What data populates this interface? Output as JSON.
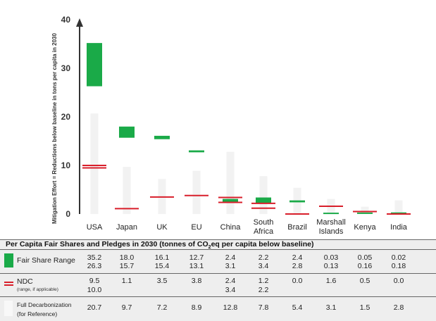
{
  "chart_data": {
    "type": "bar",
    "ylabel": "Mitigation Effort = Reductions below baseline in tons per capita in 2030",
    "ylim": [
      0,
      40
    ],
    "yticks": [
      "0",
      "10",
      "20",
      "30",
      "40"
    ],
    "categories": [
      "USA",
      "Japan",
      "UK",
      "EU",
      "China",
      "South Africa",
      "Brazil",
      "Marshall Islands",
      "Kenya",
      "India"
    ],
    "category_lines": [
      [
        "USA"
      ],
      [
        "Japan"
      ],
      [
        "UK"
      ],
      [
        "EU"
      ],
      [
        "China"
      ],
      [
        "South",
        "Africa"
      ],
      [
        "Brazil"
      ],
      [
        "Marshall",
        "Islands"
      ],
      [
        "Kenya"
      ],
      [
        "India"
      ]
    ],
    "fair_share_range": [
      [
        26.3,
        35.2
      ],
      [
        15.7,
        18.0
      ],
      [
        15.4,
        16.1
      ],
      [
        13.1,
        12.7
      ],
      [
        3.1,
        2.4
      ],
      [
        3.4,
        2.2
      ],
      [
        2.8,
        2.4
      ],
      [
        0.13,
        0.03
      ],
      [
        0.16,
        0.05
      ],
      [
        0.18,
        0.02
      ]
    ],
    "ndc": [
      [
        9.5,
        10.0
      ],
      [
        1.1
      ],
      [
        3.5
      ],
      [
        3.8
      ],
      [
        2.4,
        3.4
      ],
      [
        1.2,
        2.2
      ],
      [
        0.0
      ],
      [
        1.6
      ],
      [
        0.5
      ],
      [
        0.0
      ]
    ],
    "full_decarbonization": [
      20.7,
      9.7,
      7.2,
      8.9,
      12.8,
      7.8,
      5.4,
      3.1,
      1.5,
      2.8
    ],
    "colors": {
      "fair_share": "#1aaa48",
      "ndc": "#d81e2a",
      "full_decarbonization": "#f2f2f2",
      "axis": "#333333"
    }
  },
  "table": {
    "title_main": "Per Capita Fair Shares and Pledges in 2030 (tonnes of CO",
    "title_sub": "2",
    "title_end": "eq per capita below baseline)",
    "rows": [
      {
        "label": "Fair Share Range",
        "sublabel": "",
        "values": [
          [
            "35.2",
            "26.3"
          ],
          [
            "18.0",
            "15.7"
          ],
          [
            "16.1",
            "15.4"
          ],
          [
            "12.7",
            "13.1"
          ],
          [
            "2.4",
            "3.1"
          ],
          [
            "2.2",
            "3.4"
          ],
          [
            "2.4",
            "2.8"
          ],
          [
            "0.03",
            "0.13"
          ],
          [
            "0.05",
            "0.16"
          ],
          [
            "0.02",
            "0.18"
          ]
        ]
      },
      {
        "label": "NDC",
        "sublabel": "(range, if applicable)",
        "values": [
          [
            "9.5",
            "10.0"
          ],
          [
            "1.1",
            ""
          ],
          [
            "3.5",
            ""
          ],
          [
            "3.8",
            ""
          ],
          [
            "2.4",
            "3.4"
          ],
          [
            "1.2",
            "2.2"
          ],
          [
            "0.0",
            ""
          ],
          [
            "1.6",
            ""
          ],
          [
            "0.5",
            ""
          ],
          [
            "0.0",
            ""
          ]
        ]
      },
      {
        "label": "Full Decarbonization",
        "sublabel": "(for Reference)",
        "values": [
          [
            "20.7"
          ],
          [
            "9.7"
          ],
          [
            "7.2"
          ],
          [
            "8.9"
          ],
          [
            "12.8"
          ],
          [
            "7.8"
          ],
          [
            "5.4"
          ],
          [
            "3.1"
          ],
          [
            "1.5"
          ],
          [
            "2.8"
          ]
        ]
      }
    ]
  }
}
